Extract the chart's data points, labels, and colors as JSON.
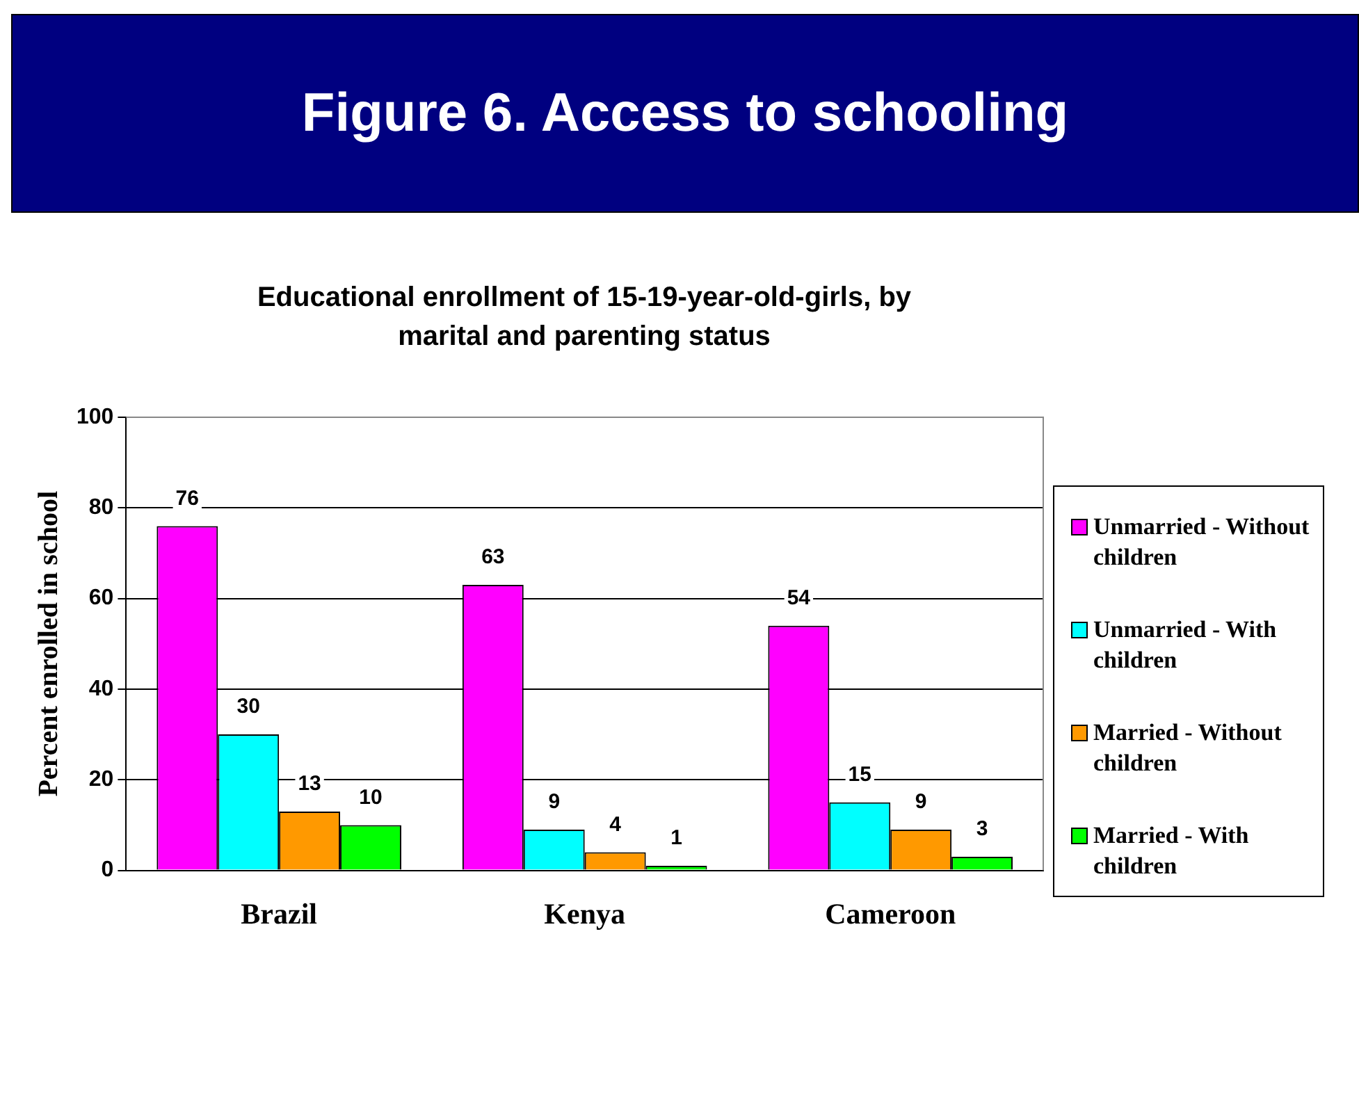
{
  "chart_data": {
    "type": "bar",
    "title": "Figure 6. Access to schooling",
    "subtitle": "Educational enrollment of 15-19-year-old-girls, by marital and parenting status",
    "ylabel": "Percent enrolled in school",
    "categories": [
      "Brazil",
      "Kenya",
      "Cameroon"
    ],
    "series": [
      {
        "name": "Unmarried - Without children",
        "color": "#ff00ff",
        "values": [
          76,
          63,
          54
        ]
      },
      {
        "name": "Unmarried - With children",
        "color": "#00ffff",
        "values": [
          30,
          9,
          15
        ]
      },
      {
        "name": "Married - Without children",
        "color": "#ff9900",
        "values": [
          13,
          4,
          9
        ]
      },
      {
        "name": "Married - With children",
        "color": "#00ff00",
        "values": [
          10,
          1,
          3
        ]
      }
    ],
    "ylim": [
      0,
      100
    ],
    "yticks": [
      0,
      20,
      40,
      60,
      80,
      100
    ],
    "grid": "y",
    "legend": "right",
    "data_labels": true
  }
}
